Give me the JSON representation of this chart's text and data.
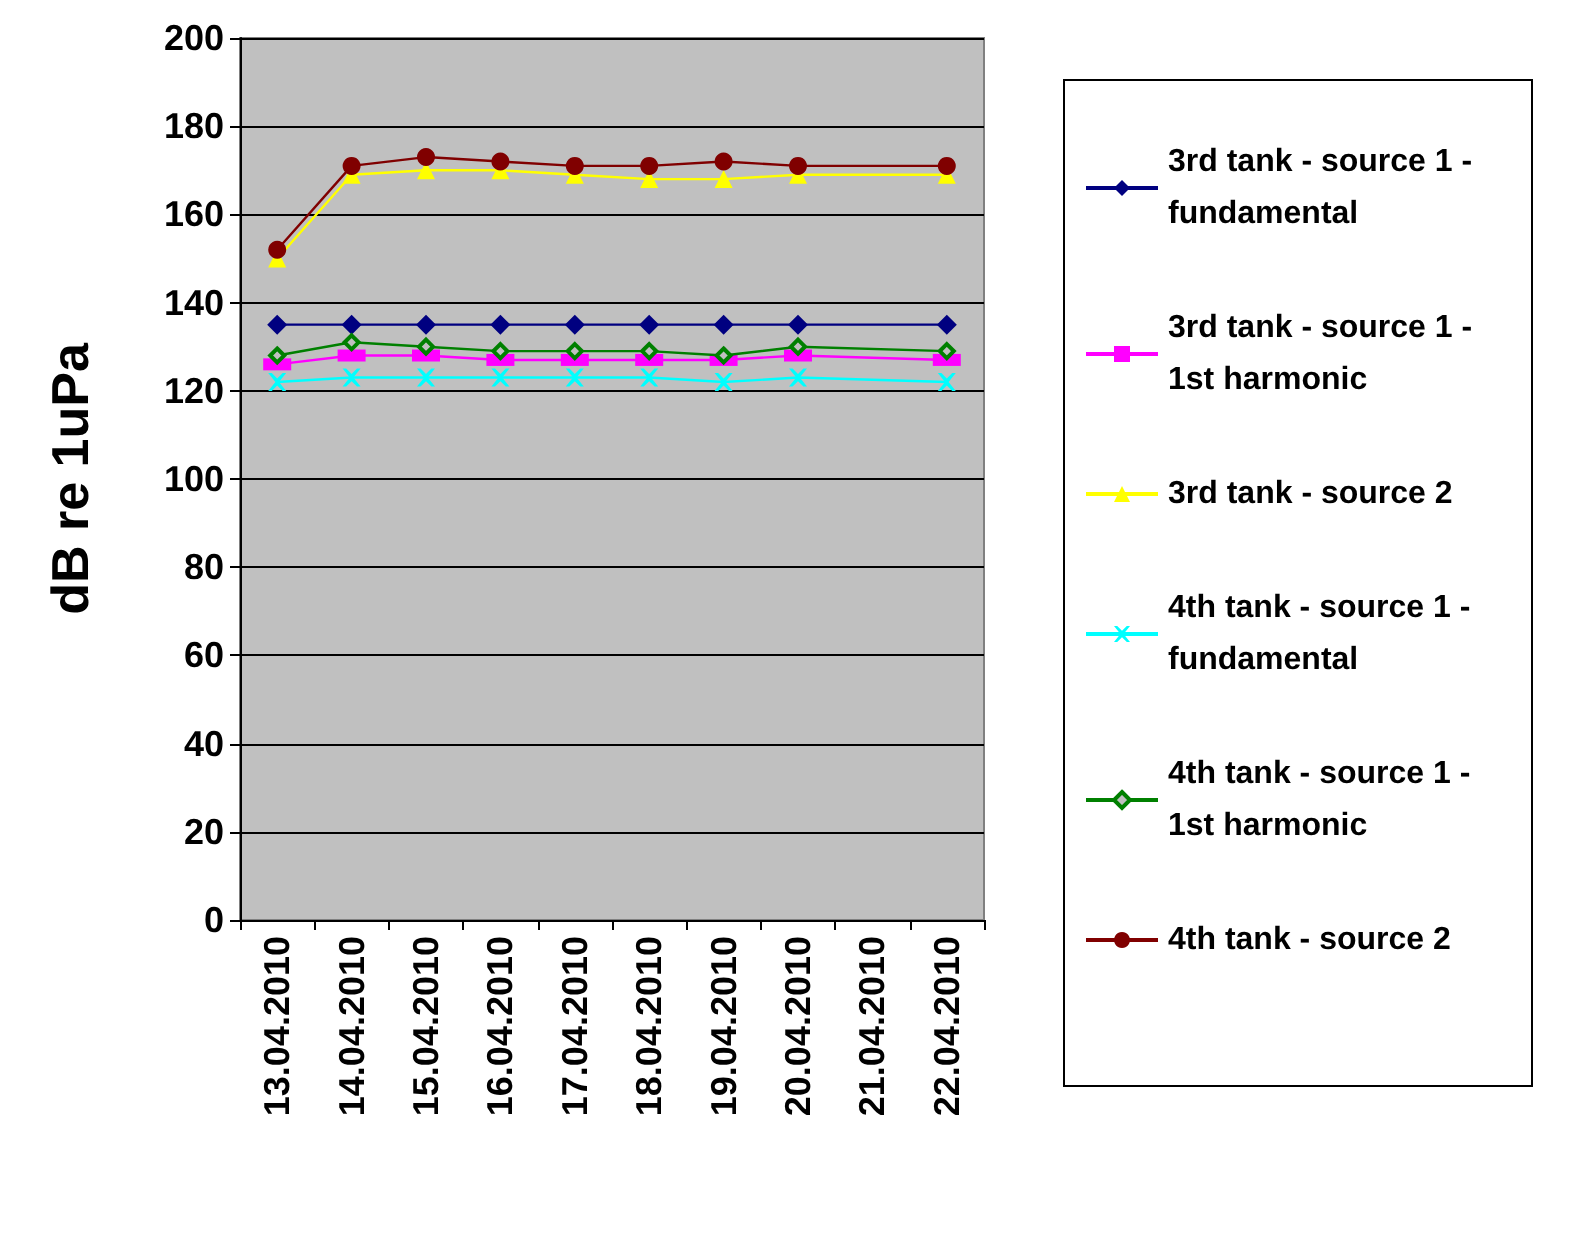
{
  "chart_data": {
    "type": "line",
    "ylabel": "dB re 1uPa",
    "categories": [
      "13.04.2010",
      "14.04.2010",
      "15.04.2010",
      "16.04.2010",
      "17.04.2010",
      "18.04.2010",
      "19.04.2010",
      "20.04.2010",
      "21.04.2010",
      "22.04.2010"
    ],
    "series": [
      {
        "name": "3rd tank - source 1 - fundamental",
        "color": "#000080",
        "marker": "diamond",
        "values": [
          135,
          135,
          135,
          135,
          135,
          135,
          135,
          135,
          null,
          135
        ]
      },
      {
        "name": "3rd tank - source 1 - 1st harmonic",
        "color": "#ff00ff",
        "marker": "square",
        "values": [
          126,
          128,
          128,
          127,
          127,
          127,
          127,
          128,
          null,
          127
        ]
      },
      {
        "name": "3rd tank - source 2",
        "color": "#ffff00",
        "marker": "triangle",
        "values": [
          150,
          169,
          170,
          170,
          169,
          168,
          168,
          169,
          null,
          169
        ]
      },
      {
        "name": "4th tank - source 1 - fundamental",
        "color": "#00ffff",
        "marker": "cross",
        "values": [
          122,
          123,
          123,
          123,
          123,
          123,
          122,
          123,
          null,
          122
        ]
      },
      {
        "name": "4th tank - source 1 - 1st harmonic",
        "color": "#008000",
        "marker": "diamond",
        "values": [
          128,
          131,
          130,
          129,
          129,
          129,
          128,
          130,
          null,
          129
        ]
      },
      {
        "name": "4th tank - source 2",
        "color": "#800000",
        "marker": "circle",
        "values": [
          152,
          171,
          173,
          172,
          171,
          171,
          172,
          171,
          null,
          171
        ]
      }
    ],
    "ylim": [
      0,
      200
    ],
    "yticks": [
      0,
      20,
      40,
      60,
      80,
      100,
      120,
      140,
      160,
      180,
      200
    ],
    "grid": "y",
    "legend": "right"
  }
}
